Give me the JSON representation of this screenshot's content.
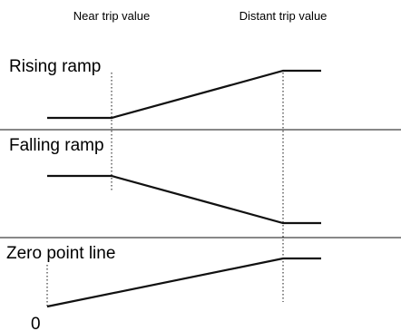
{
  "header": {
    "near_trip_label": "Near trip value",
    "distant_trip_label": "Distant trip value"
  },
  "panels": [
    {
      "id": "rising",
      "title": "Rising ramp"
    },
    {
      "id": "falling",
      "title": "Falling ramp"
    },
    {
      "id": "zero",
      "title": "Zero point line"
    }
  ],
  "zero_marker_label": "0",
  "colors": {
    "line": "#111111",
    "divider": "#111111"
  }
}
